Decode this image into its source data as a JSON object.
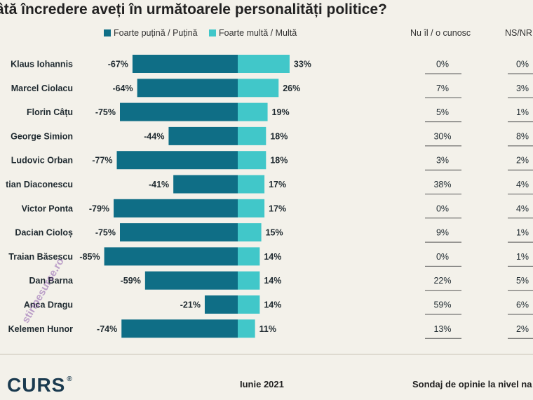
{
  "title": "âtă încredere aveți în următoarele personalități politice?",
  "legend": {
    "negative": "Foarte puțină / Puțină",
    "positive": "Foarte multă / Multă"
  },
  "columns": {
    "unknown": "Nu îl / o cunosc",
    "ns": "NS/NR"
  },
  "colors": {
    "negative": "#0f6e86",
    "positive": "#41c7c9"
  },
  "chart_data": {
    "type": "bar",
    "title": "âtă încredere aveți în următoarele personalități politice?",
    "categories": [
      "Klaus Iohannis",
      "Marcel Ciolacu",
      "Florin Câțu",
      "George Simion",
      "Ludovic Orban",
      "tian Diaconescu",
      "Victor Ponta",
      "Dacian Cioloș",
      "Traian Băsescu",
      "Dan Barna",
      "Anca Dragu",
      "Kelemen Hunor"
    ],
    "series": [
      {
        "name": "Foarte puțină / Puțină",
        "values": [
          -67,
          -64,
          -75,
          -44,
          -77,
          -41,
          -79,
          -75,
          -85,
          -59,
          -21,
          -74
        ]
      },
      {
        "name": "Foarte multă / Multă",
        "values": [
          33,
          26,
          19,
          18,
          18,
          17,
          17,
          15,
          14,
          14,
          14,
          11
        ]
      }
    ],
    "value_labels": {
      "negative": [
        "-67%",
        "-64%",
        "-75%",
        "-44%",
        "-77%",
        "-41%",
        "-79%",
        "-75%",
        "-85%",
        "-59%",
        "-21%",
        "-74%"
      ],
      "positive": [
        "33%",
        "26%",
        "19%",
        "18%",
        "18%",
        "17%",
        "17%",
        "15%",
        "14%",
        "14%",
        "14%",
        "11%"
      ]
    },
    "table": {
      "Nu îl / o cunosc": [
        "0%",
        "7%",
        "5%",
        "30%",
        "3%",
        "38%",
        "0%",
        "9%",
        "0%",
        "22%",
        "59%",
        "13%"
      ],
      "NS/NR": [
        "0%",
        "3%",
        "1%",
        "8%",
        "2%",
        "4%",
        "4%",
        "1%",
        "1%",
        "5%",
        "6%",
        "2%"
      ]
    },
    "legend_position": "top",
    "grid": false
  },
  "footer": {
    "logo": "CURS",
    "logo_mark": "®",
    "date": "Iunie 2021",
    "note": "Sondaj de opinie la nivel na"
  },
  "watermark": "stiripesurse.ro"
}
